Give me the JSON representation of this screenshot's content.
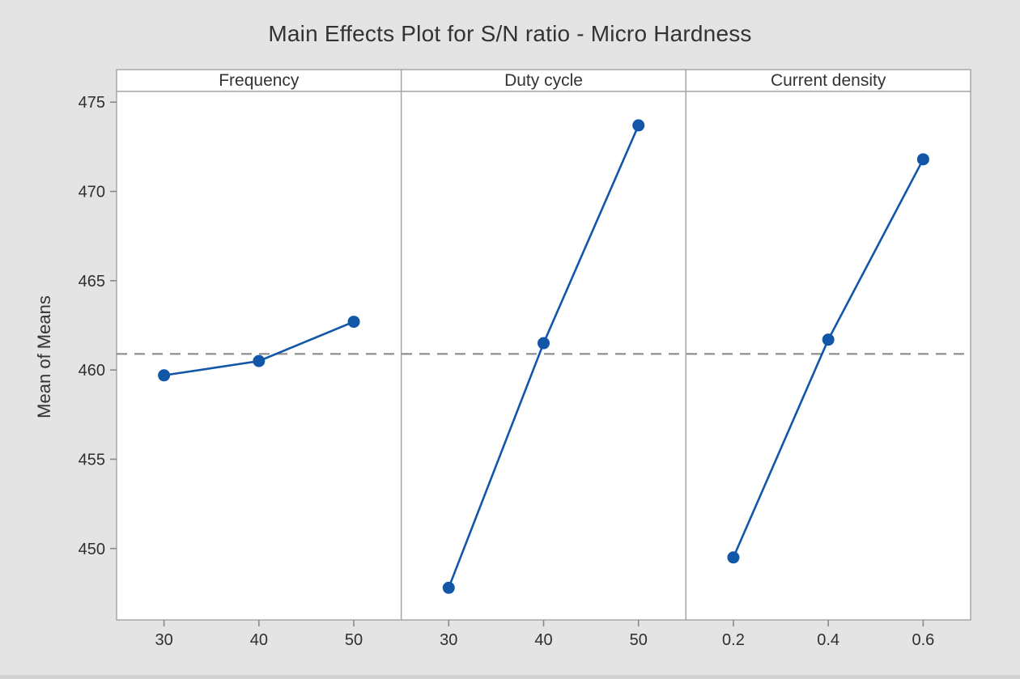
{
  "window": {
    "background_color": "#e4e4e4"
  },
  "chart_data": {
    "type": "line",
    "title": "Main Effects Plot for S/N ratio - Micro Hardness",
    "ylabel": "Mean of Means",
    "xlabel": "",
    "grid": false,
    "legend": false,
    "panels": [
      {
        "label": "Frequency",
        "categories": [
          "30",
          "40",
          "50"
        ],
        "values": [
          459.7,
          460.5,
          462.7
        ]
      },
      {
        "label": "Duty cycle",
        "categories": [
          "30",
          "40",
          "50"
        ],
        "values": [
          447.8,
          461.5,
          473.7
        ]
      },
      {
        "label": "Current density",
        "categories": [
          "0.2",
          "0.4",
          "0.6"
        ],
        "values": [
          449.5,
          461.7,
          471.8
        ]
      }
    ],
    "yticks": [
      450,
      455,
      460,
      465,
      470,
      475
    ],
    "ylim": [
      446.0,
      475.6
    ],
    "mean_reference_line": 460.9,
    "colors": {
      "series_line": "#1256a8",
      "marker": "#1256a8",
      "mean_line": "#8a8a8a",
      "panel_background": "#ffffff",
      "panel_border": "#a3a3a3",
      "tick": "#8a8a8a",
      "tick_label": "#2f2f2f",
      "header_label": "#333333"
    }
  }
}
